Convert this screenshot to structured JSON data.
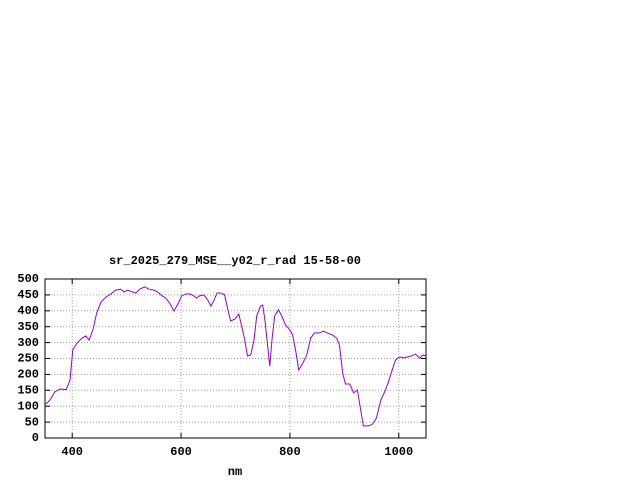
{
  "chart_data": {
    "type": "line",
    "title": "sr_2025_279_MSE__y02_r_rad 15-58-00",
    "xlabel": "nm",
    "x": [
      350,
      359,
      368,
      378,
      389,
      396,
      401,
      409,
      418,
      425,
      431,
      438,
      445,
      453,
      462,
      471,
      480,
      489,
      495,
      502,
      511,
      517,
      524,
      533,
      541,
      550,
      557,
      565,
      572,
      579,
      587,
      594,
      601,
      609,
      616,
      623,
      629,
      634,
      642,
      649,
      655,
      660,
      666,
      673,
      680,
      686,
      691,
      699,
      706,
      711,
      717,
      722,
      728,
      734,
      739,
      746,
      750,
      754,
      759,
      763,
      767,
      772,
      779,
      785,
      792,
      800,
      805,
      811,
      816,
      823,
      831,
      838,
      845,
      853,
      862,
      869,
      878,
      886,
      891,
      897,
      902,
      910,
      917,
      924,
      930,
      935,
      945,
      952,
      959,
      967,
      974,
      981,
      989,
      994,
      1001,
      1009,
      1016,
      1023,
      1031,
      1038,
      1045,
      1049
    ],
    "series": [
      {
        "color": "#9400d3",
        "values": [
          104,
          119,
          145,
          154,
          152,
          182,
          277,
          299,
          314,
          321,
          308,
          340,
          393,
          428,
          443,
          453,
          465,
          468,
          459,
          465,
          459,
          456,
          468,
          475,
          468,
          465,
          459,
          447,
          440,
          424,
          399,
          421,
          447,
          453,
          453,
          447,
          440,
          447,
          450,
          434,
          415,
          431,
          456,
          456,
          450,
          403,
          368,
          374,
          390,
          355,
          308,
          258,
          261,
          308,
          384,
          415,
          418,
          371,
          292,
          226,
          308,
          384,
          403,
          384,
          355,
          340,
          324,
          270,
          214,
          233,
          261,
          314,
          330,
          330,
          336,
          330,
          324,
          314,
          292,
          204,
          170,
          170,
          142,
          151,
          88,
          38,
          38,
          44,
          63,
          119,
          145,
          176,
          220,
          245,
          255,
          252,
          255,
          258,
          264,
          251,
          261,
          258
        ]
      }
    ],
    "xlim": [
      350,
      1050
    ],
    "xticks": [
      400,
      600,
      800,
      1000
    ],
    "ylim": [
      0,
      500
    ],
    "yticks": [
      0,
      50,
      100,
      150,
      200,
      250,
      300,
      350,
      400,
      450,
      500
    ],
    "grid": true
  }
}
